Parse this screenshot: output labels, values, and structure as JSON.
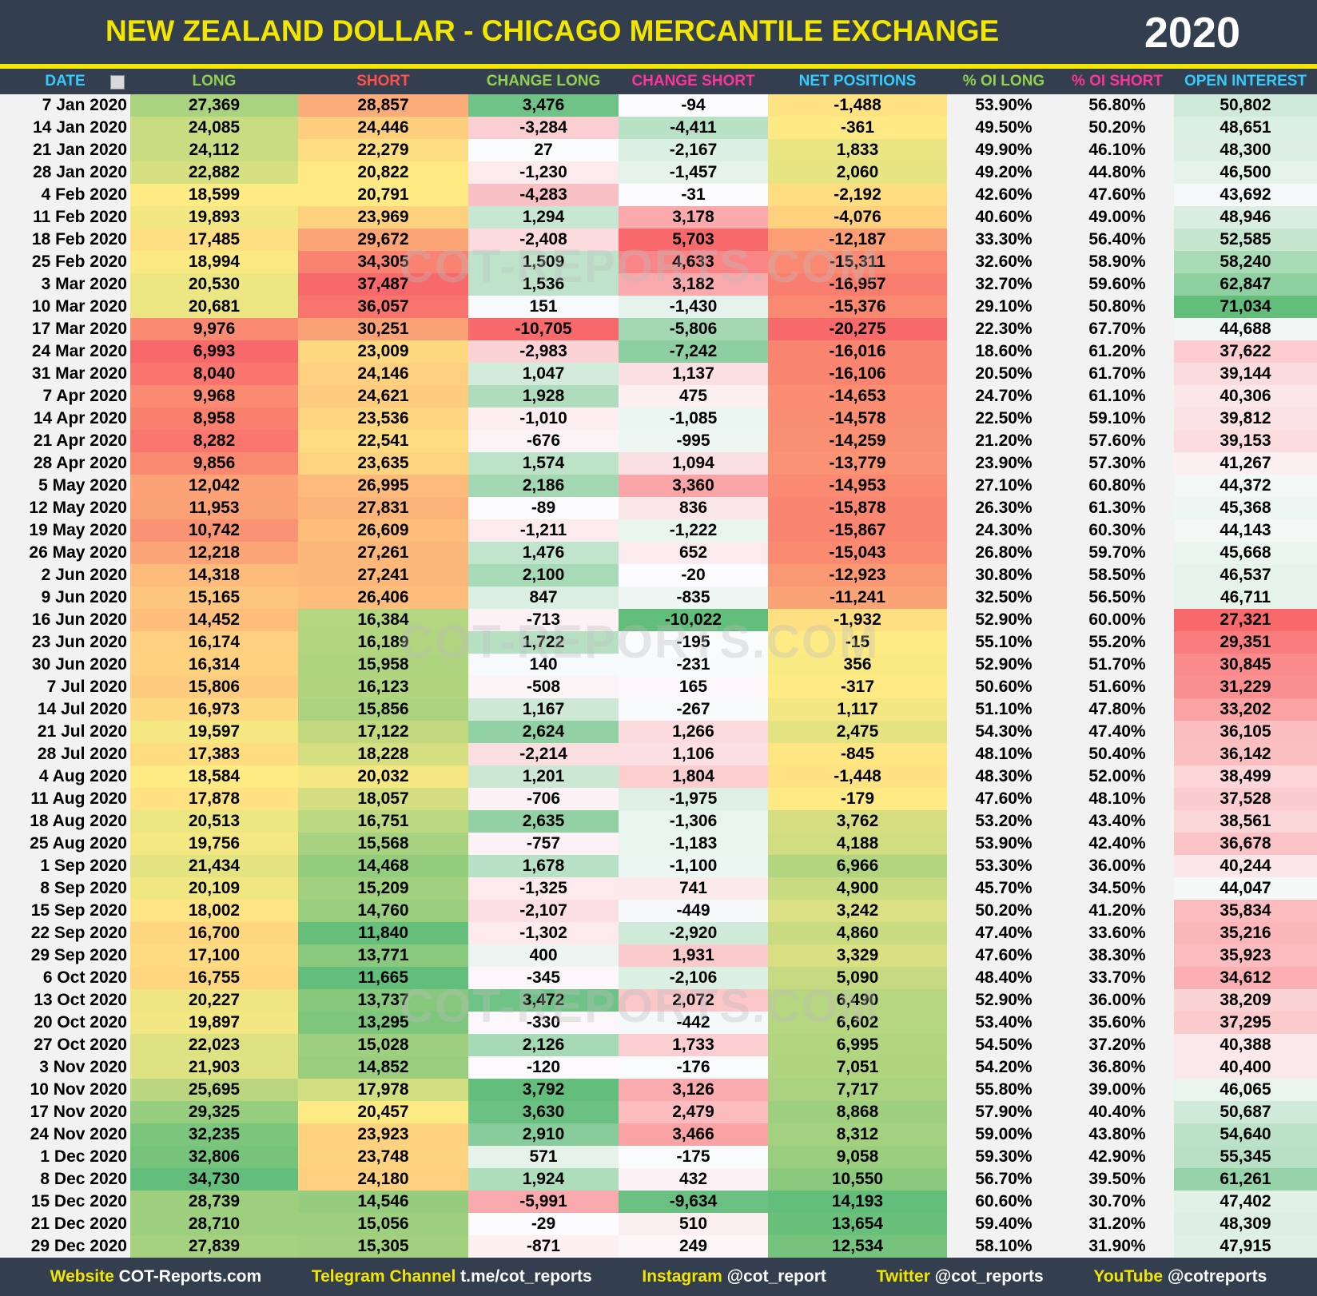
{
  "header": {
    "title": "NEW ZEALAND DOLLAR - CHICAGO MERCANTILE EXCHANGE",
    "year": "2020"
  },
  "watermark": "COT-REPORTS.COM",
  "table": {
    "columns": [
      "DATE",
      "LONG",
      "SHORT",
      "CHANGE LONG",
      "CHANGE SHORT",
      "NET POSITIONS",
      "% OI LONG",
      "% OI SHORT",
      "OPEN INTEREST"
    ],
    "rows": [
      [
        "7 Jan 2020",
        "27,369",
        "28,857",
        "3,476",
        "-94",
        "-1,488",
        "53.90%",
        "56.80%",
        "50,802"
      ],
      [
        "14 Jan 2020",
        "24,085",
        "24,446",
        "-3,284",
        "-4,411",
        "-361",
        "49.50%",
        "50.20%",
        "48,651"
      ],
      [
        "21 Jan 2020",
        "24,112",
        "22,279",
        "27",
        "-2,167",
        "1,833",
        "49.90%",
        "46.10%",
        "48,300"
      ],
      [
        "28 Jan 2020",
        "22,882",
        "20,822",
        "-1,230",
        "-1,457",
        "2,060",
        "49.20%",
        "44.80%",
        "46,500"
      ],
      [
        "4 Feb 2020",
        "18,599",
        "20,791",
        "-4,283",
        "-31",
        "-2,192",
        "42.60%",
        "47.60%",
        "43,692"
      ],
      [
        "11 Feb 2020",
        "19,893",
        "23,969",
        "1,294",
        "3,178",
        "-4,076",
        "40.60%",
        "49.00%",
        "48,946"
      ],
      [
        "18 Feb 2020",
        "17,485",
        "29,672",
        "-2,408",
        "5,703",
        "-12,187",
        "33.30%",
        "56.40%",
        "52,585"
      ],
      [
        "25 Feb 2020",
        "18,994",
        "34,305",
        "1,509",
        "4,633",
        "-15,311",
        "32.60%",
        "58.90%",
        "58,240"
      ],
      [
        "3 Mar 2020",
        "20,530",
        "37,487",
        "1,536",
        "3,182",
        "-16,957",
        "32.70%",
        "59.60%",
        "62,847"
      ],
      [
        "10 Mar 2020",
        "20,681",
        "36,057",
        "151",
        "-1,430",
        "-15,376",
        "29.10%",
        "50.80%",
        "71,034"
      ],
      [
        "17 Mar 2020",
        "9,976",
        "30,251",
        "-10,705",
        "-5,806",
        "-20,275",
        "22.30%",
        "67.70%",
        "44,688"
      ],
      [
        "24 Mar 2020",
        "6,993",
        "23,009",
        "-2,983",
        "-7,242",
        "-16,016",
        "18.60%",
        "61.20%",
        "37,622"
      ],
      [
        "31 Mar 2020",
        "8,040",
        "24,146",
        "1,047",
        "1,137",
        "-16,106",
        "20.50%",
        "61.70%",
        "39,144"
      ],
      [
        "7 Apr 2020",
        "9,968",
        "24,621",
        "1,928",
        "475",
        "-14,653",
        "24.70%",
        "61.10%",
        "40,306"
      ],
      [
        "14 Apr 2020",
        "8,958",
        "23,536",
        "-1,010",
        "-1,085",
        "-14,578",
        "22.50%",
        "59.10%",
        "39,812"
      ],
      [
        "21 Apr 2020",
        "8,282",
        "22,541",
        "-676",
        "-995",
        "-14,259",
        "21.20%",
        "57.60%",
        "39,153"
      ],
      [
        "28 Apr 2020",
        "9,856",
        "23,635",
        "1,574",
        "1,094",
        "-13,779",
        "23.90%",
        "57.30%",
        "41,267"
      ],
      [
        "5 May 2020",
        "12,042",
        "26,995",
        "2,186",
        "3,360",
        "-14,953",
        "27.10%",
        "60.80%",
        "44,372"
      ],
      [
        "12 May 2020",
        "11,953",
        "27,831",
        "-89",
        "836",
        "-15,878",
        "26.30%",
        "61.30%",
        "45,368"
      ],
      [
        "19 May 2020",
        "10,742",
        "26,609",
        "-1,211",
        "-1,222",
        "-15,867",
        "24.30%",
        "60.30%",
        "44,143"
      ],
      [
        "26 May 2020",
        "12,218",
        "27,261",
        "1,476",
        "652",
        "-15,043",
        "26.80%",
        "59.70%",
        "45,668"
      ],
      [
        "2 Jun 2020",
        "14,318",
        "27,241",
        "2,100",
        "-20",
        "-12,923",
        "30.80%",
        "58.50%",
        "46,537"
      ],
      [
        "9 Jun 2020",
        "15,165",
        "26,406",
        "847",
        "-835",
        "-11,241",
        "32.50%",
        "56.50%",
        "46,711"
      ],
      [
        "16 Jun 2020",
        "14,452",
        "16,384",
        "-713",
        "-10,022",
        "-1,932",
        "52.90%",
        "60.00%",
        "27,321"
      ],
      [
        "23 Jun 2020",
        "16,174",
        "16,189",
        "1,722",
        "-195",
        "-15",
        "55.10%",
        "55.20%",
        "29,351"
      ],
      [
        "30 Jun 2020",
        "16,314",
        "15,958",
        "140",
        "-231",
        "356",
        "52.90%",
        "51.70%",
        "30,845"
      ],
      [
        "7 Jul 2020",
        "15,806",
        "16,123",
        "-508",
        "165",
        "-317",
        "50.60%",
        "51.60%",
        "31,229"
      ],
      [
        "14 Jul 2020",
        "16,973",
        "15,856",
        "1,167",
        "-267",
        "1,117",
        "51.10%",
        "47.80%",
        "33,202"
      ],
      [
        "21 Jul 2020",
        "19,597",
        "17,122",
        "2,624",
        "1,266",
        "2,475",
        "54.30%",
        "47.40%",
        "36,105"
      ],
      [
        "28 Jul 2020",
        "17,383",
        "18,228",
        "-2,214",
        "1,106",
        "-845",
        "48.10%",
        "50.40%",
        "36,142"
      ],
      [
        "4 Aug 2020",
        "18,584",
        "20,032",
        "1,201",
        "1,804",
        "-1,448",
        "48.30%",
        "52.00%",
        "38,499"
      ],
      [
        "11 Aug 2020",
        "17,878",
        "18,057",
        "-706",
        "-1,975",
        "-179",
        "47.60%",
        "48.10%",
        "37,528"
      ],
      [
        "18 Aug 2020",
        "20,513",
        "16,751",
        "2,635",
        "-1,306",
        "3,762",
        "53.20%",
        "43.40%",
        "38,561"
      ],
      [
        "25 Aug 2020",
        "19,756",
        "15,568",
        "-757",
        "-1,183",
        "4,188",
        "53.90%",
        "42.40%",
        "36,678"
      ],
      [
        "1 Sep 2020",
        "21,434",
        "14,468",
        "1,678",
        "-1,100",
        "6,966",
        "53.30%",
        "36.00%",
        "40,244"
      ],
      [
        "8 Sep 2020",
        "20,109",
        "15,209",
        "-1,325",
        "741",
        "4,900",
        "45.70%",
        "34.50%",
        "44,047"
      ],
      [
        "15 Sep 2020",
        "18,002",
        "14,760",
        "-2,107",
        "-449",
        "3,242",
        "50.20%",
        "41.20%",
        "35,834"
      ],
      [
        "22 Sep 2020",
        "16,700",
        "11,840",
        "-1,302",
        "-2,920",
        "4,860",
        "47.40%",
        "33.60%",
        "35,216"
      ],
      [
        "29 Sep 2020",
        "17,100",
        "13,771",
        "400",
        "1,931",
        "3,329",
        "47.60%",
        "38.30%",
        "35,923"
      ],
      [
        "6 Oct 2020",
        "16,755",
        "11,665",
        "-345",
        "-2,106",
        "5,090",
        "48.40%",
        "33.70%",
        "34,612"
      ],
      [
        "13 Oct 2020",
        "20,227",
        "13,737",
        "3,472",
        "2,072",
        "6,490",
        "52.90%",
        "36.00%",
        "38,209"
      ],
      [
        "20 Oct 2020",
        "19,897",
        "13,295",
        "-330",
        "-442",
        "6,602",
        "53.40%",
        "35.60%",
        "37,295"
      ],
      [
        "27 Oct 2020",
        "22,023",
        "15,028",
        "2,126",
        "1,733",
        "6,995",
        "54.50%",
        "37.20%",
        "40,388"
      ],
      [
        "3 Nov 2020",
        "21,903",
        "14,852",
        "-120",
        "-176",
        "7,051",
        "54.20%",
        "36.80%",
        "40,400"
      ],
      [
        "10 Nov 2020",
        "25,695",
        "17,978",
        "3,792",
        "3,126",
        "7,717",
        "55.80%",
        "39.00%",
        "46,065"
      ],
      [
        "17 Nov 2020",
        "29,325",
        "20,457",
        "3,630",
        "2,479",
        "8,868",
        "57.90%",
        "40.40%",
        "50,687"
      ],
      [
        "24 Nov 2020",
        "32,235",
        "23,923",
        "2,910",
        "3,466",
        "8,312",
        "59.00%",
        "43.80%",
        "54,640"
      ],
      [
        "1 Dec 2020",
        "32,806",
        "23,748",
        "571",
        "-175",
        "9,058",
        "59.30%",
        "42.90%",
        "55,345"
      ],
      [
        "8 Dec 2020",
        "34,730",
        "24,180",
        "1,924",
        "432",
        "10,550",
        "56.70%",
        "39.50%",
        "61,261"
      ],
      [
        "15 Dec 2020",
        "28,739",
        "14,546",
        "-5,991",
        "-9,634",
        "14,193",
        "60.60%",
        "30.70%",
        "47,402"
      ],
      [
        "21 Dec 2020",
        "28,710",
        "15,056",
        "-29",
        "510",
        "13,654",
        "59.40%",
        "31.20%",
        "48,309"
      ],
      [
        "29 Dec 2020",
        "27,839",
        "15,305",
        "-871",
        "249",
        "12,534",
        "58.10%",
        "31.90%",
        "47,915"
      ]
    ]
  },
  "footer": [
    {
      "label": "Website",
      "value": "COT-Reports.com"
    },
    {
      "label": "Telegram Channel",
      "value": "t.me/cot_reports"
    },
    {
      "label": "Instagram",
      "value": "@cot_report"
    },
    {
      "label": "Twitter",
      "value": "@cot_reports"
    },
    {
      "label": "YouTube",
      "value": "@cotreports"
    }
  ]
}
